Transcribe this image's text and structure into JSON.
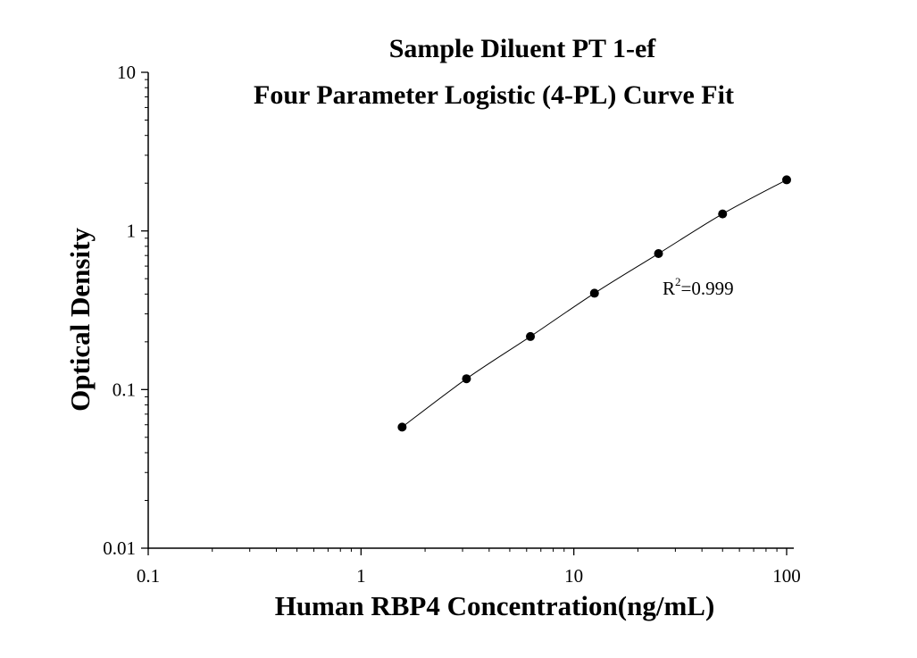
{
  "chart_data": {
    "type": "scatter",
    "title": "Sample Diluent PT 1-ef",
    "subtitle": "Four Parameter Logistic (4-PL) Curve Fit",
    "xlabel": "Human RBP4 Concentration(ng/mL)",
    "ylabel": "Optical Density",
    "xscale": "log",
    "yscale": "log",
    "xlim": [
      0.1,
      100
    ],
    "ylim": [
      0.01,
      10
    ],
    "xticks": [
      "0.1",
      "1",
      "10",
      "100"
    ],
    "yticks": [
      "0.01",
      "0.1",
      "1",
      "10"
    ],
    "grid": false,
    "series": [
      {
        "x": [
          1.56,
          3.13,
          6.25,
          12.5,
          25,
          50,
          100
        ],
        "y": [
          0.058,
          0.117,
          0.216,
          0.405,
          0.72,
          1.28,
          2.1
        ]
      }
    ],
    "annotation": {
      "r_label": "R",
      "r_sup": "2",
      "r_value": "=0.999"
    },
    "colors": {
      "points": "#000000",
      "curve": "#000000",
      "axes": "#000000"
    }
  }
}
